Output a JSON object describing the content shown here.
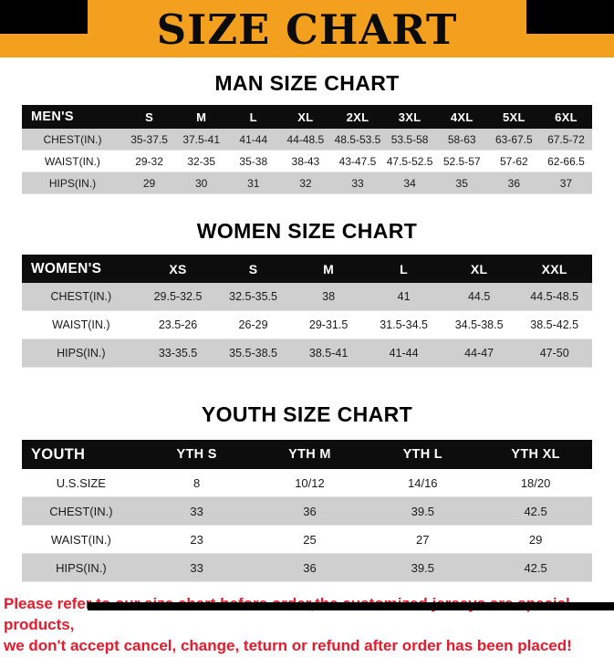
{
  "banner": {
    "title": "SIZE CHART"
  },
  "colors": {
    "banner": "#f2a01e",
    "header-bg": "#0d0d0d",
    "row-gray": "#cfcfcf",
    "footer-red": "#e8192b"
  },
  "sections": [
    {
      "heading": "MAN SIZE CHART",
      "table": {
        "header": [
          "MEN'S",
          "S",
          "M",
          "L",
          "XL",
          "2XL",
          "3XL",
          "4XL",
          "5XL",
          "6XL"
        ],
        "rows": [
          [
            "CHEST(IN.)",
            "35-37.5",
            "37.5-41",
            "41-44",
            "44-48.5",
            "48.5-53.5",
            "53.5-58",
            "58-63",
            "63-67.5",
            "67.5-72"
          ],
          [
            "WAIST(IN.)",
            "29-32",
            "32-35",
            "35-38",
            "38-43",
            "43-47.5",
            "47.5-52.5",
            "52.5-57",
            "57-62",
            "62-66.5"
          ],
          [
            "HIPS(IN.)",
            "29",
            "30",
            "31",
            "32",
            "33",
            "34",
            "35",
            "36",
            "37"
          ]
        ]
      }
    },
    {
      "heading": "WOMEN SIZE CHART",
      "table": {
        "header": [
          "WOMEN'S",
          "XS",
          "S",
          "M",
          "L",
          "XL",
          "XXL"
        ],
        "rows": [
          [
            "CHEST(IN.)",
            "29.5-32.5",
            "32.5-35.5",
            "38",
            "41",
            "44.5",
            "44.5-48.5"
          ],
          [
            "WAIST(IN.)",
            "23.5-26",
            "26-29",
            "29-31.5",
            "31.5-34.5",
            "34.5-38.5",
            "38.5-42.5"
          ],
          [
            "HIPS(IN.)",
            "33-35.5",
            "35.5-38.5",
            "38.5-41",
            "41-44",
            "44-47",
            "47-50"
          ]
        ]
      }
    },
    {
      "heading": "YOUTH SIZE CHART",
      "table": {
        "header": [
          "YOUTH",
          "YTH S",
          "YTH M",
          "YTH L",
          "YTH XL"
        ],
        "rows": [
          [
            "U.S.SIZE",
            "8",
            "10/12",
            "14/16",
            "18/20"
          ],
          [
            "CHEST(IN.)",
            "33",
            "36",
            "39.5",
            "42.5"
          ],
          [
            "WAIST(IN.)",
            "23",
            "25",
            "27",
            "29"
          ],
          [
            "HIPS(IN.)",
            "33",
            "36",
            "39.5",
            "42.5"
          ]
        ]
      }
    }
  ],
  "footer": {
    "line1": "Please refer to our size chart before order,the customized jerseys are special products,",
    "line2": "we don't accept cancel, change, teturn or refund after order has been placed!"
  }
}
